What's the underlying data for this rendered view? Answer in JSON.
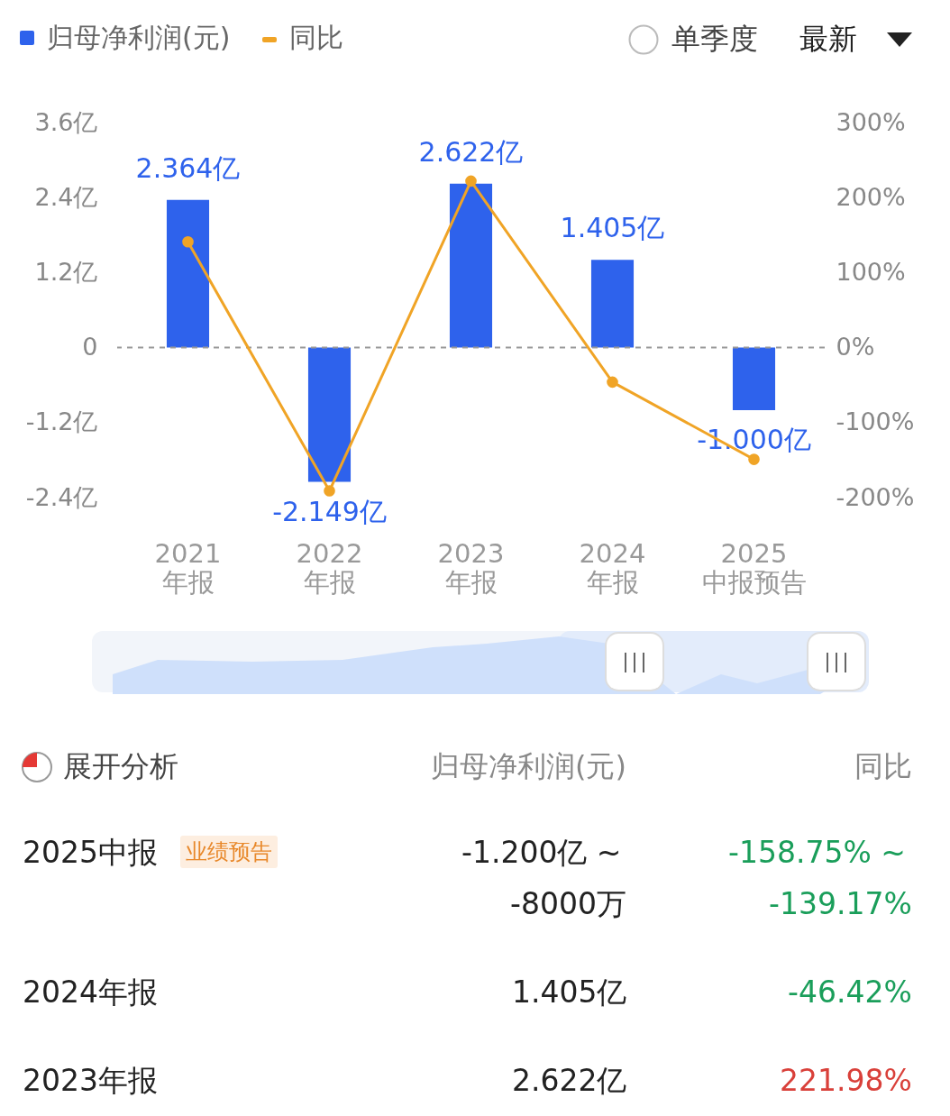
{
  "chart_data": {
    "type": "bar",
    "categories": [
      "2021\n年报",
      "2022\n年报",
      "2023\n年报",
      "2024\n年报",
      "2025\n中报预告"
    ],
    "series": [
      {
        "name": "归母净利润(元)",
        "color": "#2e62ec",
        "values": [
          2.364,
          -2.149,
          2.622,
          1.405,
          -1.0
        ],
        "value_labels": [
          "2.364亿",
          "-2.149亿",
          "2.622亿",
          "1.405亿",
          "-1.000亿"
        ]
      },
      {
        "name": "同比",
        "type": "line",
        "axis": "y2",
        "color": "#f0a426",
        "values": [
          141,
          -191,
          222,
          -46,
          -149
        ]
      }
    ],
    "ylim": [
      -2.4,
      3.6
    ],
    "yticks": [
      {
        "value": -2.4,
        "label": "-2.4亿"
      },
      {
        "value": -1.2,
        "label": "-1.2亿"
      },
      {
        "value": 0,
        "label": "0"
      },
      {
        "value": 1.2,
        "label": "1.2亿"
      },
      {
        "value": 2.4,
        "label": "2.4亿"
      },
      {
        "value": 3.6,
        "label": "3.6亿"
      }
    ],
    "y2lim": [
      -200,
      300
    ],
    "y2ticks": [
      {
        "value": -200,
        "label": "-200%"
      },
      {
        "value": -100,
        "label": "-100%"
      },
      {
        "value": 0,
        "label": "0%"
      },
      {
        "value": 100,
        "label": "100%"
      },
      {
        "value": 200,
        "label": "200%"
      },
      {
        "value": 300,
        "label": "300%"
      }
    ],
    "grid": false,
    "legend": "top left",
    "marker": "circle",
    "ref_lines": [
      {
        "axis": "y",
        "value": 0,
        "color": "#999999",
        "line_style": "dashed"
      }
    ],
    "annotations": [
      "单季度",
      "最新",
      "展开分析",
      "归母净利润(元)",
      "同比",
      "2025中报",
      "业绩预告",
      "-1.200亿 ~",
      "-8000万",
      "-158.75% ~",
      "-139.17%",
      "2024年报",
      "1.405亿",
      "-46.42%",
      "2023年报",
      "2.622亿",
      "221.98%"
    ]
  }
}
